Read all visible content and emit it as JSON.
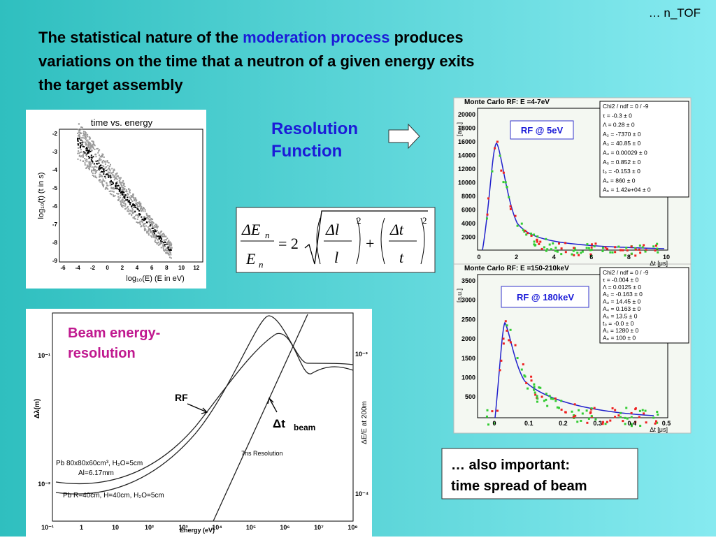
{
  "header": {
    "tag": "… n_TOF",
    "title": {
      "start": "The statistical nature of the ",
      "highlight": "moderation process",
      "end": " produces",
      "line2": "variations on the time that a neutron of a given energy exits",
      "line3": "the target assembly"
    }
  },
  "resolution": {
    "line1": "Resolution",
    "line2": "Function"
  },
  "formula": {
    "delta_e": "ΔE",
    "sub": "n",
    "e": "E",
    "equals": "= 2",
    "dl": "Δl",
    "l": "l",
    "plus": "+",
    "dt": "Δt",
    "t": "t",
    "exp": "2"
  },
  "time_energy": {
    "title": "time vs. energy",
    "ylabel": "log₁₀(t) (t in s)",
    "xlabel": "log₁₀(E) (E in eV)",
    "yticks": [
      "-2",
      "-3",
      "-4",
      "-5",
      "-6",
      "-7",
      "-8",
      "-9"
    ],
    "xticks": [
      "-6",
      "-4",
      "-2",
      "0",
      "2",
      "4",
      "6",
      "8",
      "10",
      "12"
    ]
  },
  "rf_low": {
    "title": "Monte Carlo RF: E =4-7eV",
    "label": "RF @ 5eV",
    "ylabel": "[a.u.]",
    "xlabel": "Δt [μs]",
    "yticks": [
      "20000",
      "18000",
      "16000",
      "14000",
      "12000",
      "10000",
      "8000",
      "6000",
      "4000",
      "2000"
    ],
    "xticks": [
      "0",
      "2",
      "4",
      "6",
      "8",
      "10"
    ],
    "stats": [
      "Chi2 / ndf =    0 / -9",
      "τ    = -0.3 ±   0",
      "Λ  = 0.28 ±   0",
      "A₂  = -7370 ±   0",
      "A₃  = 40.85 ±   0",
      "A₄  = 0.00029 ±   0",
      "A₅  = 0.852 ±   0",
      "t₀  = -0.153 ±   0",
      "A₁  =   860 ±   0",
      "A₆  = 1.42e+04 ±   0"
    ]
  },
  "rf_high": {
    "title": "Monte Carlo RF: E =150-210keV",
    "label": "RF @ 180keV",
    "ylabel": "[a.u.]",
    "xlabel": "Δt [μs]",
    "yticks": [
      "3500",
      "3000",
      "2500",
      "2000",
      "1500",
      "1000",
      "500"
    ],
    "xticks": [
      "0",
      "0.1",
      "0.2",
      "0.3",
      "0.4",
      "0.5"
    ],
    "stats": [
      "Chi2 / ndf =    0 / -9",
      "τ    = -0.004 ±   0",
      "Λ = 0.0125 ±   0",
      "A₂  = -0.163 ±   0",
      "A₃  = 14.45 ±   0",
      "A₄  = 0.163 ±   0",
      "A₅  =  13.5 ±   0",
      "t₀  =  -0.0 ±   0",
      "A₁  =  1280 ±   0",
      "A₆  =   100 ±   0"
    ]
  },
  "beam": {
    "title1": "Beam energy-",
    "title2": "resolution",
    "rf": "RF",
    "dt": "Δt",
    "dt_sub": "beam",
    "resolution_line": "7ns Resolution",
    "legend1": "Pb 80x80x60cm³, H₂O=5cm",
    "legend2": "Al=6.17mm",
    "legend3": "Pb R=40cm, H=40cm, H₂O=5cm",
    "ylabel": "Δλ(m)",
    "y2label": "ΔE/E at 200m",
    "xlabel": "Energy (eV)",
    "yticks": [
      "10⁻¹",
      "10⁻²"
    ],
    "y2ticks": [
      "10⁻³",
      "10⁻⁴"
    ],
    "xticks": [
      "10⁻¹",
      "1",
      "10",
      "10²",
      "10³",
      "10⁴",
      "10⁵",
      "10⁶",
      "10⁷",
      "10⁸"
    ]
  },
  "note": {
    "line1": "… also important:",
    "line2": "time spread of beam"
  }
}
